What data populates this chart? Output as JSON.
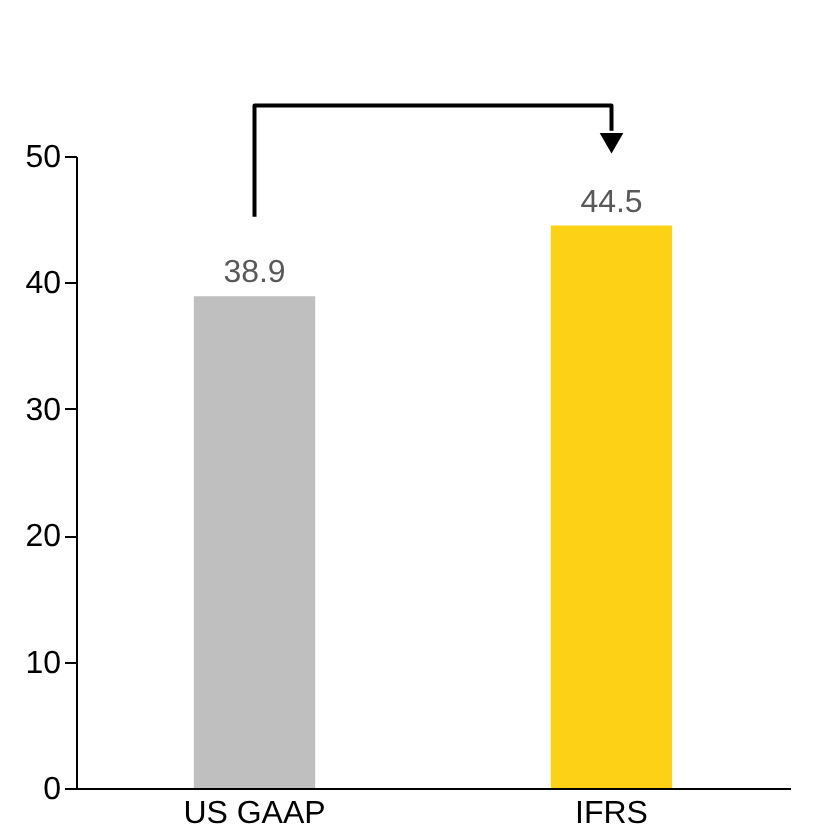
{
  "chart_data": {
    "type": "bar",
    "categories": [
      "US GAAP",
      "IFRS"
    ],
    "values": [
      38.9,
      44.5
    ],
    "colors": [
      "#bfbfbf",
      "#fcd116"
    ],
    "ylim": [
      0,
      50
    ],
    "yticks": [
      0,
      10,
      20,
      30,
      40,
      50
    ],
    "grid": false,
    "data_labels": true
  }
}
